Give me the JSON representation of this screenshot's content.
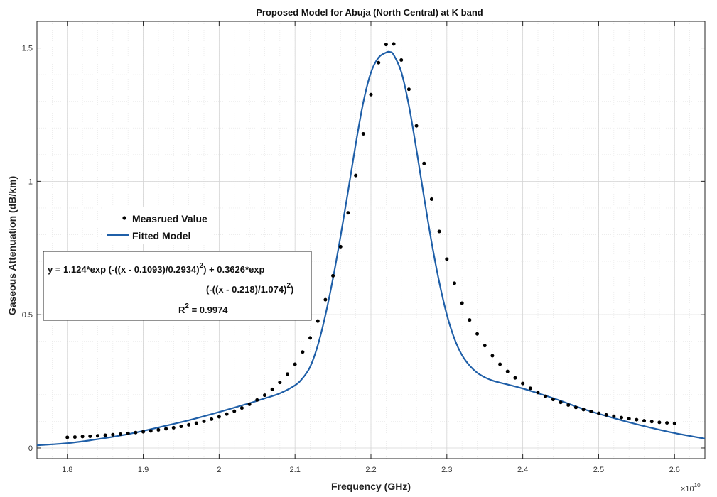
{
  "chart_data": {
    "type": "scatter",
    "title": "Proposed Model for Abuja (North Central) at K band",
    "xlabel": "Frequency (GHz)",
    "ylabel": "Gaseous Attenuation (dB/km)",
    "x_exponent_label": "×10",
    "x_exponent_power": "10",
    "xlim": [
      1.76,
      2.64
    ],
    "ylim": [
      -0.04,
      1.6
    ],
    "x_ticks": [
      1.8,
      1.9,
      2.0,
      2.1,
      2.2,
      2.3,
      2.4,
      2.5,
      2.6
    ],
    "x_tick_labels": [
      "1.8",
      "1.9",
      "2",
      "2.1",
      "2.2",
      "2.3",
      "2.4",
      "2.5",
      "2.6"
    ],
    "y_ticks": [
      0,
      0.5,
      1,
      1.5
    ],
    "y_tick_labels": [
      "0",
      "0.5",
      "1",
      "1.5"
    ],
    "grid": true,
    "minor_grid": true,
    "legend_position": "middle-left",
    "series": [
      {
        "name": "Measrued Value",
        "kind": "points",
        "color": "#000000",
        "x": [
          1.8,
          1.81,
          1.82,
          1.83,
          1.84,
          1.85,
          1.86,
          1.87,
          1.88,
          1.89,
          1.9,
          1.91,
          1.92,
          1.93,
          1.94,
          1.95,
          1.96,
          1.97,
          1.98,
          1.99,
          2.0,
          2.01,
          2.02,
          2.03,
          2.04,
          2.05,
          2.06,
          2.07,
          2.08,
          2.09,
          2.1,
          2.11,
          2.12,
          2.13,
          2.14,
          2.15,
          2.16,
          2.17,
          2.18,
          2.19,
          2.2,
          2.21,
          2.22,
          2.23,
          2.24,
          2.25,
          2.26,
          2.27,
          2.28,
          2.29,
          2.3,
          2.31,
          2.32,
          2.33,
          2.34,
          2.35,
          2.36,
          2.37,
          2.38,
          2.39,
          2.4,
          2.41,
          2.42,
          2.43,
          2.44,
          2.45,
          2.46,
          2.47,
          2.48,
          2.49,
          2.5,
          2.51,
          2.52,
          2.53,
          2.54,
          2.55,
          2.56,
          2.57,
          2.58,
          2.59,
          2.6
        ],
        "y": [
          0.04,
          0.041,
          0.043,
          0.044,
          0.046,
          0.048,
          0.05,
          0.052,
          0.055,
          0.058,
          0.061,
          0.064,
          0.068,
          0.072,
          0.076,
          0.081,
          0.087,
          0.093,
          0.1,
          0.108,
          0.117,
          0.127,
          0.138,
          0.15,
          0.164,
          0.18,
          0.198,
          0.22,
          0.246,
          0.277,
          0.314,
          0.36,
          0.413,
          0.476,
          0.556,
          0.646,
          0.755,
          0.882,
          1.022,
          1.178,
          1.325,
          1.445,
          1.513,
          1.515,
          1.455,
          1.345,
          1.208,
          1.067,
          0.933,
          0.812,
          0.708,
          0.618,
          0.543,
          0.48,
          0.428,
          0.384,
          0.346,
          0.314,
          0.287,
          0.263,
          0.242,
          0.224,
          0.208,
          0.194,
          0.182,
          0.171,
          0.161,
          0.152,
          0.144,
          0.137,
          0.13,
          0.124,
          0.119,
          0.114,
          0.11,
          0.106,
          0.102,
          0.099,
          0.096,
          0.094,
          0.092
        ]
      },
      {
        "name": "Fitted Model",
        "kind": "line",
        "color": "#1f5fa8",
        "x": [
          1.76,
          1.8,
          1.84,
          1.88,
          1.92,
          1.96,
          2.0,
          2.04,
          2.06,
          2.08,
          2.1,
          2.11,
          2.12,
          2.13,
          2.14,
          2.15,
          2.16,
          2.17,
          2.18,
          2.19,
          2.2,
          2.21,
          2.22,
          2.225,
          2.23,
          2.24,
          2.25,
          2.26,
          2.27,
          2.28,
          2.29,
          2.3,
          2.31,
          2.32,
          2.33,
          2.34,
          2.35,
          2.36,
          2.37,
          2.38,
          2.4,
          2.44,
          2.48,
          2.52,
          2.56,
          2.6,
          2.64
        ],
        "y": [
          0.01,
          0.018,
          0.033,
          0.052,
          0.077,
          0.104,
          0.135,
          0.168,
          0.186,
          0.205,
          0.235,
          0.262,
          0.305,
          0.385,
          0.498,
          0.636,
          0.794,
          0.965,
          1.14,
          1.297,
          1.408,
          1.464,
          1.483,
          1.485,
          1.474,
          1.41,
          1.284,
          1.118,
          0.94,
          0.77,
          0.622,
          0.5,
          0.41,
          0.348,
          0.309,
          0.282,
          0.265,
          0.253,
          0.245,
          0.238,
          0.223,
          0.187,
          0.146,
          0.112,
          0.082,
          0.056,
          0.035
        ]
      }
    ],
    "annotation": {
      "line1": "y = 1.124*exp (-((x - 0.1093)/0.2934)",
      "line1_sup": "2",
      "line1_tail": ") + 0.3626*exp",
      "line2": "(-((x - 0.218)/1.074)",
      "line2_sup": "2",
      "line2_tail": ")",
      "line3": "R",
      "line3_sup": "2",
      "line3_tail": " = 0.9974"
    }
  }
}
